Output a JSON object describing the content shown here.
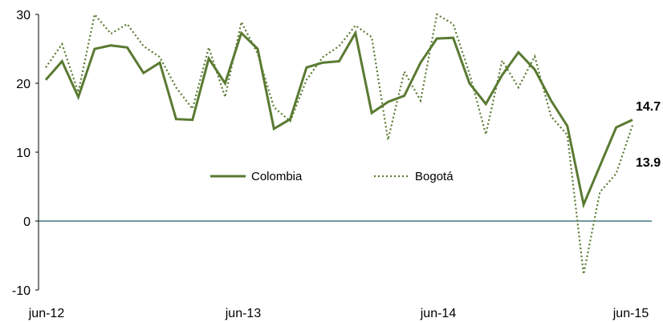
{
  "chart_data": {
    "type": "line",
    "x_tick_labels": [
      "jun-12",
      "jun-13",
      "jun-14",
      "jun-15"
    ],
    "y_tick_labels": [
      "30",
      "20",
      "10",
      "0",
      "-10"
    ],
    "ylim": [
      -10,
      30
    ],
    "grid": false,
    "legend_position": "center",
    "colors": {
      "series": "#5a7a32",
      "zero_line": "#1f5c63"
    },
    "series": [
      {
        "name": "Colombia",
        "style": "solid",
        "end_label": "14.7",
        "values": [
          20.5,
          23.2,
          18.0,
          25.0,
          25.5,
          25.2,
          21.5,
          23.0,
          14.8,
          14.7,
          23.6,
          20.0,
          27.3,
          25.0,
          13.4,
          14.8,
          22.3,
          23.0,
          23.2,
          27.3,
          15.7,
          17.3,
          18.2,
          23.0,
          26.5,
          26.6,
          20.0,
          17.0,
          21.2,
          24.5,
          22.0,
          17.5,
          13.8,
          2.4,
          8.0,
          13.6,
          14.7
        ]
      },
      {
        "name": "Bogotá",
        "style": "dotted",
        "end_label": "13.9",
        "values": [
          22.3,
          25.7,
          18.7,
          30.0,
          27.2,
          28.6,
          25.4,
          23.8,
          19.4,
          16.3,
          25.2,
          18.0,
          28.9,
          24.3,
          16.5,
          14.5,
          20.5,
          23.8,
          25.4,
          28.4,
          26.7,
          11.8,
          21.7,
          17.5,
          30.0,
          28.6,
          21.4,
          12.6,
          23.3,
          19.4,
          23.9,
          15.2,
          12.5,
          -7.7,
          4.2,
          6.9,
          13.9
        ]
      }
    ]
  }
}
